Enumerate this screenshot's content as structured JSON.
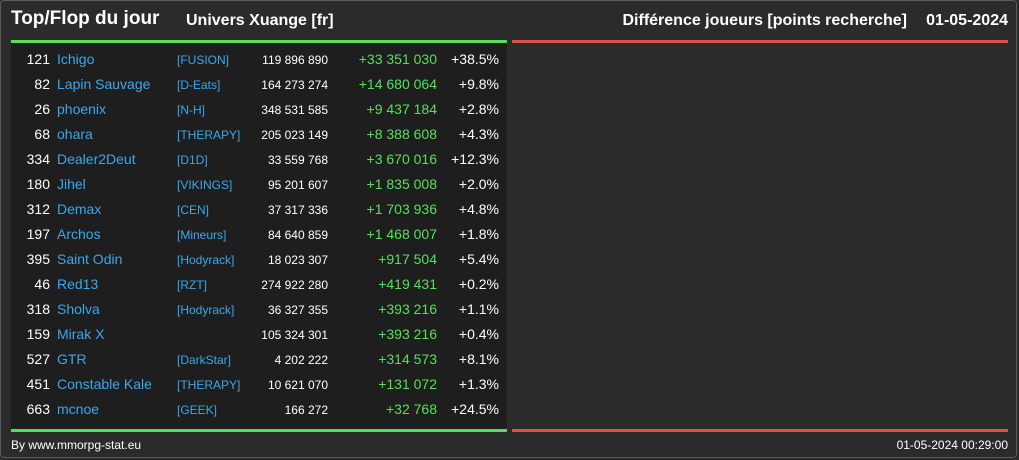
{
  "header": {
    "title": "Top/Flop du jour",
    "universe": "Univers Xuange [fr]",
    "metric": "Différence joueurs [points recherche]",
    "date": "01-05-2024"
  },
  "colors": {
    "accent_top": "#55e05a",
    "accent_flop": "#e0504a",
    "name_color": "#3aa8ee",
    "positive_color": "#55e05a"
  },
  "top_rows": [
    {
      "rank": "121",
      "name": "Ichigo",
      "alliance": "[FUSION]",
      "points": "119 896 890",
      "diff": "+33 351 030",
      "pct": "+38.5%"
    },
    {
      "rank": "82",
      "name": "Lapin Sauvage",
      "alliance": "[D-Eats]",
      "points": "164 273 274",
      "diff": "+14 680 064",
      "pct": "+9.8%"
    },
    {
      "rank": "26",
      "name": "phoenix",
      "alliance": "[N-H]",
      "points": "348 531 585",
      "diff": "+9 437 184",
      "pct": "+2.8%"
    },
    {
      "rank": "68",
      "name": "ohara",
      "alliance": "[THERAPY]",
      "points": "205 023 149",
      "diff": "+8 388 608",
      "pct": "+4.3%"
    },
    {
      "rank": "334",
      "name": "Dealer2Deut",
      "alliance": "[D1D]",
      "points": "33 559 768",
      "diff": "+3 670 016",
      "pct": "+12.3%"
    },
    {
      "rank": "180",
      "name": "Jihel",
      "alliance": "[VIKINGS]",
      "points": "95 201 607",
      "diff": "+1 835 008",
      "pct": "+2.0%"
    },
    {
      "rank": "312",
      "name": "Demax",
      "alliance": "[CEN]",
      "points": "37 317 336",
      "diff": "+1 703 936",
      "pct": "+4.8%"
    },
    {
      "rank": "197",
      "name": "Archos",
      "alliance": "[Mineurs]",
      "points": "84 640 859",
      "diff": "+1 468 007",
      "pct": "+1.8%"
    },
    {
      "rank": "395",
      "name": "Saint Odin",
      "alliance": "[Hodyrack]",
      "points": "18 023 307",
      "diff": "+917 504",
      "pct": "+5.4%"
    },
    {
      "rank": "46",
      "name": "Red13",
      "alliance": "[RZT]",
      "points": "274 922 280",
      "diff": "+419 431",
      "pct": "+0.2%"
    },
    {
      "rank": "318",
      "name": "Sholva",
      "alliance": "[Hodyrack]",
      "points": "36 327 355",
      "diff": "+393 216",
      "pct": "+1.1%"
    },
    {
      "rank": "159",
      "name": "Mirak X",
      "alliance": "",
      "points": "105 324 301",
      "diff": "+393 216",
      "pct": "+0.4%"
    },
    {
      "rank": "527",
      "name": "GTR",
      "alliance": "[DarkStar]",
      "points": "4 202 222",
      "diff": "+314 573",
      "pct": "+8.1%"
    },
    {
      "rank": "451",
      "name": "Constable Kale",
      "alliance": "[THERAPY]",
      "points": "10 621 070",
      "diff": "+131 072",
      "pct": "+1.3%"
    },
    {
      "rank": "663",
      "name": "mcnoe",
      "alliance": "[GEEK]",
      "points": "166 272",
      "diff": "+32 768",
      "pct": "+24.5%"
    }
  ],
  "footer": {
    "source": "By www.mmorpg-stat.eu",
    "timestamp": "01-05-2024 00:29:00"
  }
}
